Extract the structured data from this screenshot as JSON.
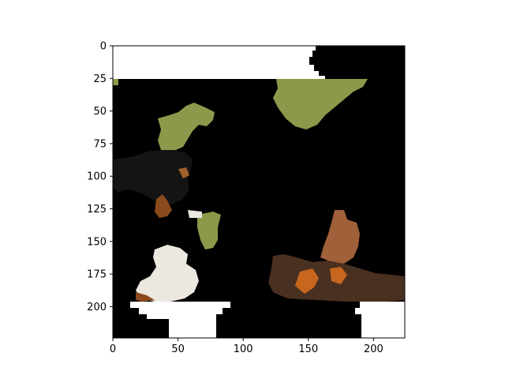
{
  "image": {
    "width_units": 224,
    "height_units": 224,
    "xlim": [
      0,
      224
    ],
    "ylim_inverted": [
      224,
      0
    ],
    "background_fill": "#000000",
    "masked_fill": "#ffffff",
    "description_regions": [
      "grass-patch-top-right",
      "grass-patch-left",
      "grass-patch-small",
      "dog-head-black",
      "dog-white-paw",
      "brown-leaf-patch",
      "tree-bark-patch"
    ]
  },
  "axes": {
    "x_ticks": [
      0,
      50,
      100,
      150,
      200
    ],
    "y_ticks": [
      0,
      25,
      50,
      75,
      100,
      125,
      150,
      175,
      200
    ],
    "x_tick_labels": [
      "0",
      "50",
      "100",
      "150",
      "200"
    ],
    "y_tick_labels": [
      "0",
      "25",
      "50",
      "75",
      "100",
      "125",
      "150",
      "175",
      "200"
    ]
  },
  "colors": {
    "frame": "#000000",
    "grass": "#8a9a4a",
    "grass_dark": "#6f7f35",
    "dog": "#141414",
    "dog_brown": "#8a4a1c",
    "fur_white": "#ece8e0",
    "leaf": "#a0603a",
    "bark": "#4a3020",
    "bark_orange": "#c8661e"
  }
}
